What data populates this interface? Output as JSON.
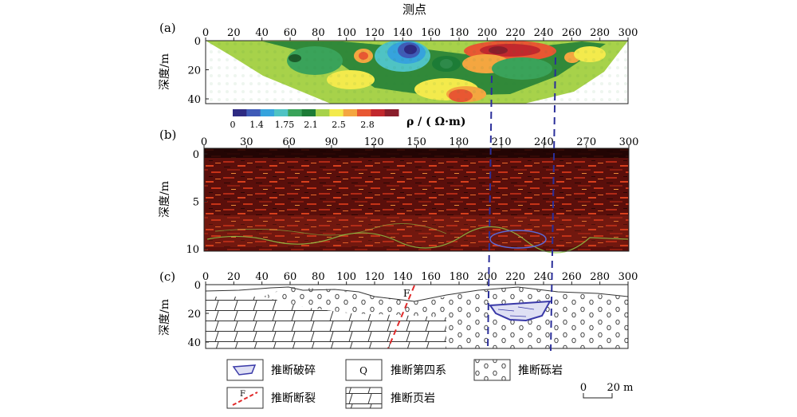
{
  "panel_a": {
    "label": "(a)",
    "title": "测点",
    "x_ticks": [
      "0",
      "20",
      "40",
      "60",
      "80",
      "100",
      "120",
      "140",
      "160",
      "180",
      "200",
      "220",
      "240",
      "260",
      "280",
      "300"
    ],
    "y_label": "深度/m",
    "y_ticks": [
      "0",
      "20",
      "40"
    ],
    "colorbar_ticks": [
      "0",
      "1.4",
      "1.75",
      "2.1",
      "2.5",
      "2.8"
    ],
    "colorbar_label": "ρ / ( Ω·m)",
    "colorbar_colors": [
      "#2e2a82",
      "#3f5bb7",
      "#36a3dd",
      "#4fc3c4",
      "#3aa35a",
      "#1c7c36",
      "#a7d24a",
      "#f3ea4c",
      "#f4a640",
      "#e85732",
      "#c2282d",
      "#8a1e2b"
    ]
  },
  "panel_b": {
    "label": "(b)",
    "x_ticks": [
      "0",
      "30",
      "60",
      "90",
      "120",
      "150",
      "180",
      "210",
      "240",
      "270",
      "300"
    ],
    "y_label": "深度/m",
    "y_ticks": [
      "0",
      "5",
      "10"
    ]
  },
  "panel_c": {
    "label": "(c)",
    "x_ticks": [
      "0",
      "20",
      "40",
      "60",
      "80",
      "100",
      "120",
      "140",
      "160",
      "180",
      "200",
      "220",
      "240",
      "260",
      "280",
      "300"
    ],
    "y_label": "深度/m",
    "y_ticks": [
      "0",
      "20",
      "40"
    ],
    "fault_label": "F"
  },
  "legend": {
    "items": [
      {
        "label": "推断破碎",
        "symbol": "broken-zone"
      },
      {
        "label": "推断第四系",
        "symbol": "quaternary",
        "symbol_text": "Q"
      },
      {
        "label": "推断砾岩",
        "symbol": "conglomerate"
      },
      {
        "label": "推断断裂",
        "symbol": "fault",
        "symbol_text": "F"
      },
      {
        "label": "推断页岩",
        "symbol": "shale"
      }
    ],
    "scale_start": "0",
    "scale_end": "20 m"
  },
  "colors": {
    "dashed_line": "#2b2f9a",
    "fault": "#e02a2a",
    "broken_zone": "#3a3aa8"
  }
}
